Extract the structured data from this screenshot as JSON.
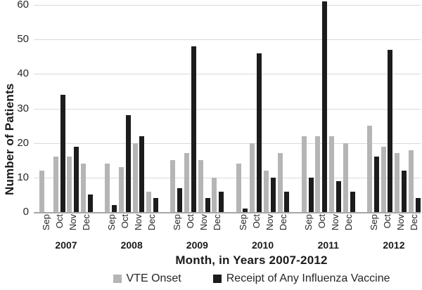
{
  "chart_data": {
    "type": "bar",
    "title": "",
    "ylabel": "Number of Patients",
    "xlabel": "Month, in Years 2007-2012",
    "ylim": [
      0,
      60
    ],
    "yticks": [
      0,
      10,
      20,
      30,
      40,
      50,
      60
    ],
    "grid": "horizontal",
    "legend_position": "bottom",
    "months": [
      "Sep",
      "Oct",
      "Nov",
      "Dec"
    ],
    "series": [
      {
        "name": "VTE Onset",
        "key": "vte",
        "color": "#b5b5b5"
      },
      {
        "name": "Receipt of Any Influenza Vaccine",
        "key": "vaccine",
        "color": "#1c1c1c"
      }
    ],
    "groups": [
      {
        "year": "2007",
        "vte": [
          12,
          16,
          16,
          14
        ],
        "vaccine": [
          0,
          34,
          19,
          5
        ]
      },
      {
        "year": "2008",
        "vte": [
          14,
          13,
          20,
          6
        ],
        "vaccine": [
          2,
          28,
          22,
          4
        ]
      },
      {
        "year": "2009",
        "vte": [
          15,
          17,
          15,
          10
        ],
        "vaccine": [
          7,
          48,
          4,
          6
        ]
      },
      {
        "year": "2010",
        "vte": [
          14,
          20,
          12,
          17
        ],
        "vaccine": [
          1,
          46,
          10,
          6
        ]
      },
      {
        "year": "2011",
        "vte": [
          22,
          22,
          22,
          20
        ],
        "vaccine": [
          10,
          61,
          9,
          6
        ]
      },
      {
        "year": "2012",
        "vte": [
          25,
          19,
          17,
          18
        ],
        "vaccine": [
          16,
          47,
          12,
          4
        ]
      }
    ]
  },
  "colors": {
    "gridline": "#d9d9d9",
    "axis_line": "#a6a6a6",
    "text": "#262626"
  }
}
